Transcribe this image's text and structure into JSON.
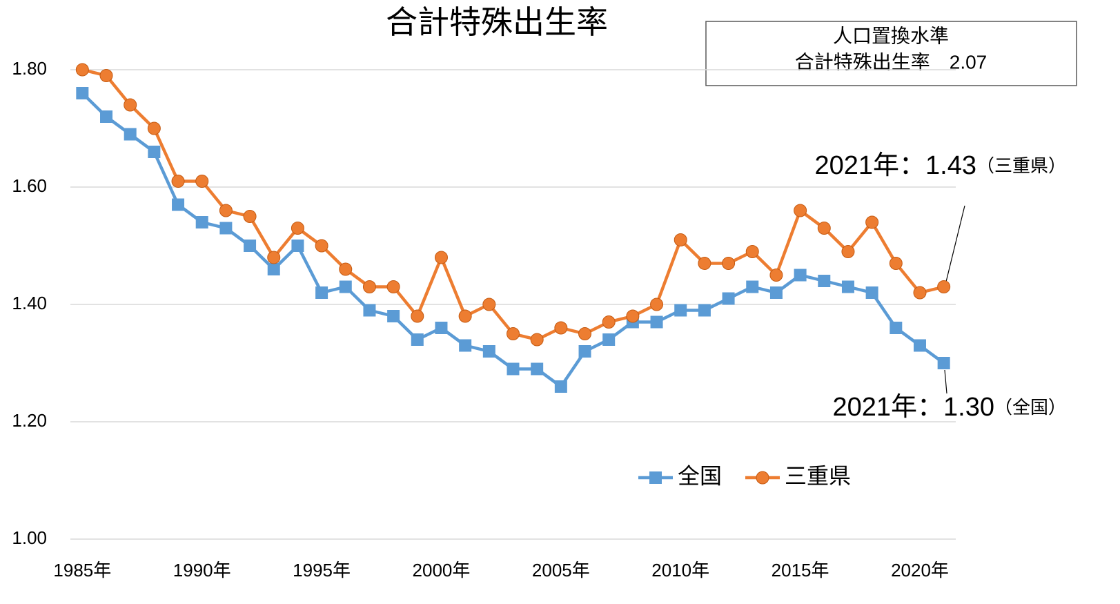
{
  "chart_data": {
    "type": "line",
    "title": "合計特殊出生率",
    "x": [
      1985,
      1986,
      1987,
      1988,
      1989,
      1990,
      1991,
      1992,
      1993,
      1994,
      1995,
      1996,
      1997,
      1998,
      1999,
      2000,
      2001,
      2002,
      2003,
      2004,
      2005,
      2006,
      2007,
      2008,
      2009,
      2010,
      2011,
      2012,
      2013,
      2014,
      2015,
      2016,
      2017,
      2018,
      2019,
      2020,
      2021
    ],
    "series": [
      {
        "name": "全国",
        "color": "#5b9bd5",
        "marker": "square",
        "values": [
          1.76,
          1.72,
          1.69,
          1.66,
          1.57,
          1.54,
          1.53,
          1.5,
          1.46,
          1.5,
          1.42,
          1.43,
          1.39,
          1.38,
          1.34,
          1.36,
          1.33,
          1.32,
          1.29,
          1.29,
          1.26,
          1.32,
          1.34,
          1.37,
          1.37,
          1.39,
          1.39,
          1.41,
          1.43,
          1.42,
          1.45,
          1.44,
          1.43,
          1.42,
          1.36,
          1.33,
          1.3
        ]
      },
      {
        "name": "三重県",
        "color": "#ed7d31",
        "marker": "circle",
        "values": [
          1.8,
          1.79,
          1.74,
          1.7,
          1.61,
          1.61,
          1.56,
          1.55,
          1.48,
          1.53,
          1.5,
          1.46,
          1.43,
          1.43,
          1.38,
          1.48,
          1.38,
          1.4,
          1.35,
          1.34,
          1.36,
          1.35,
          1.37,
          1.38,
          1.4,
          1.51,
          1.47,
          1.47,
          1.49,
          1.45,
          1.56,
          1.53,
          1.49,
          1.54,
          1.47,
          1.42,
          1.43
        ]
      }
    ],
    "xlim": [
      1984.5,
      2021.5
    ],
    "xticks": [
      {
        "value": 1985,
        "label": "1985年"
      },
      {
        "value": 1990,
        "label": "1990年"
      },
      {
        "value": 1995,
        "label": "1995年"
      },
      {
        "value": 2000,
        "label": "2000年"
      },
      {
        "value": 2005,
        "label": "2005年"
      },
      {
        "value": 2010,
        "label": "2010年"
      },
      {
        "value": 2015,
        "label": "2015年"
      },
      {
        "value": 2020,
        "label": "2020年"
      }
    ],
    "ylim": [
      1.0,
      1.8
    ],
    "yticks": [
      {
        "value": 1.0,
        "label": "1.00"
      },
      {
        "value": 1.2,
        "label": "1.20"
      },
      {
        "value": 1.4,
        "label": "1.40"
      },
      {
        "value": 1.6,
        "label": "1.60"
      },
      {
        "value": 1.8,
        "label": "1.80"
      }
    ],
    "grid": true,
    "legend": "lower-center",
    "annotations": {
      "box": [
        "人口置換水準",
        "合計特殊出生率　2.07"
      ],
      "mie": [
        "2021年：1.43",
        "（三重県）"
      ],
      "national": [
        "2021年：1.30",
        "（全国）"
      ]
    }
  }
}
